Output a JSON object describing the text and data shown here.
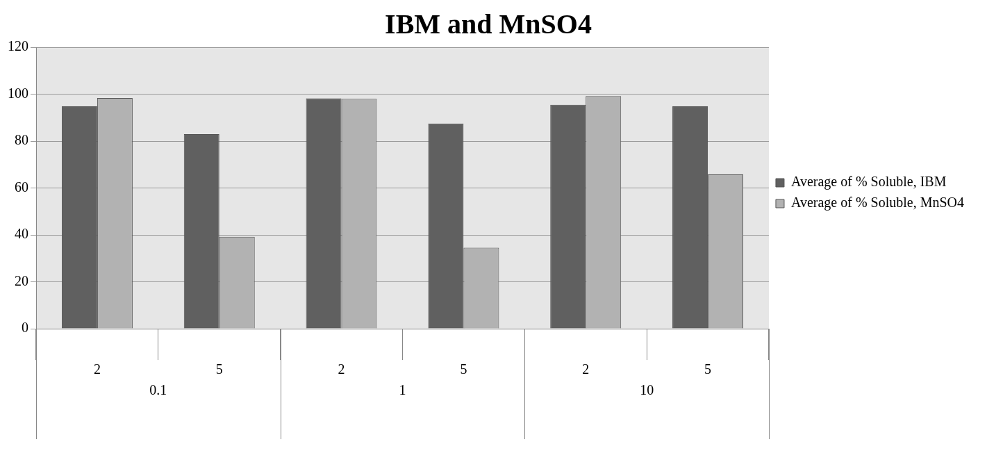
{
  "chart_data": {
    "type": "bar",
    "title": "IBM and MnSO4",
    "categories": [
      "2",
      "5",
      "2",
      "5",
      "2",
      "5"
    ],
    "series": [
      {
        "name": "Average of % Soluble, IBM",
        "color": "#606060",
        "values": [
          94.8,
          83.0,
          98.2,
          87.5,
          95.5,
          94.8
        ]
      },
      {
        "name": "Average of % Soluble, MnSO4",
        "color": "#b2b2b2",
        "values": [
          98.4,
          39.2,
          98.0,
          34.5,
          99.2,
          65.8
        ]
      }
    ],
    "annotations": [
      "0.1",
      "1",
      "10"
    ],
    "ylim": [
      0,
      120
    ],
    "yticks": [
      0,
      20,
      40,
      60,
      80,
      100,
      120
    ],
    "grid": "y",
    "legend": "right"
  }
}
